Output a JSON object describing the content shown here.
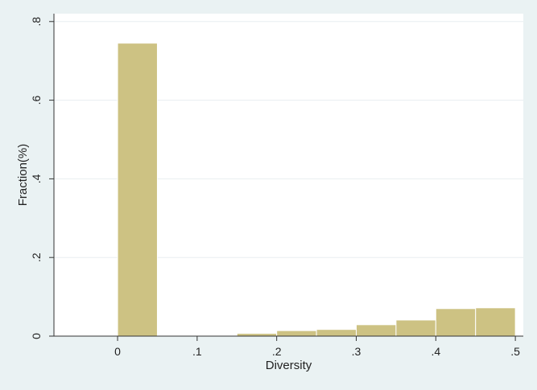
{
  "chart_data": {
    "type": "bar",
    "title": "",
    "xlabel": "Diversity",
    "ylabel": "Fraction(%)",
    "bin_width": 0.05,
    "bins": [
      {
        "start": 0.0,
        "value": 0.745
      },
      {
        "start": 0.05,
        "value": 0.002
      },
      {
        "start": 0.1,
        "value": 0.002
      },
      {
        "start": 0.15,
        "value": 0.007
      },
      {
        "start": 0.2,
        "value": 0.014
      },
      {
        "start": 0.25,
        "value": 0.017
      },
      {
        "start": 0.3,
        "value": 0.029
      },
      {
        "start": 0.35,
        "value": 0.041
      },
      {
        "start": 0.4,
        "value": 0.07
      },
      {
        "start": 0.45,
        "value": 0.072
      }
    ],
    "xlim": [
      -0.08,
      0.51
    ],
    "ylim": [
      0,
      0.82
    ],
    "x_ticks": [
      {
        "value": 0,
        "label": "0"
      },
      {
        "value": 0.1,
        "label": ".1"
      },
      {
        "value": 0.2,
        "label": ".2"
      },
      {
        "value": 0.3,
        "label": ".3"
      },
      {
        "value": 0.4,
        "label": ".4"
      },
      {
        "value": 0.5,
        "label": ".5"
      }
    ],
    "y_ticks": [
      {
        "value": 0,
        "label": "0"
      },
      {
        "value": 0.2,
        "label": ".2"
      },
      {
        "value": 0.4,
        "label": ".4"
      },
      {
        "value": 0.6,
        "label": ".6"
      },
      {
        "value": 0.8,
        "label": ".8"
      }
    ],
    "grid": true,
    "colors": {
      "bar": "#cdc283",
      "plot_background": "#ffffff",
      "outer_background": "#eaf2f3",
      "grid": "#e8eef0",
      "axis": "#333333"
    }
  }
}
